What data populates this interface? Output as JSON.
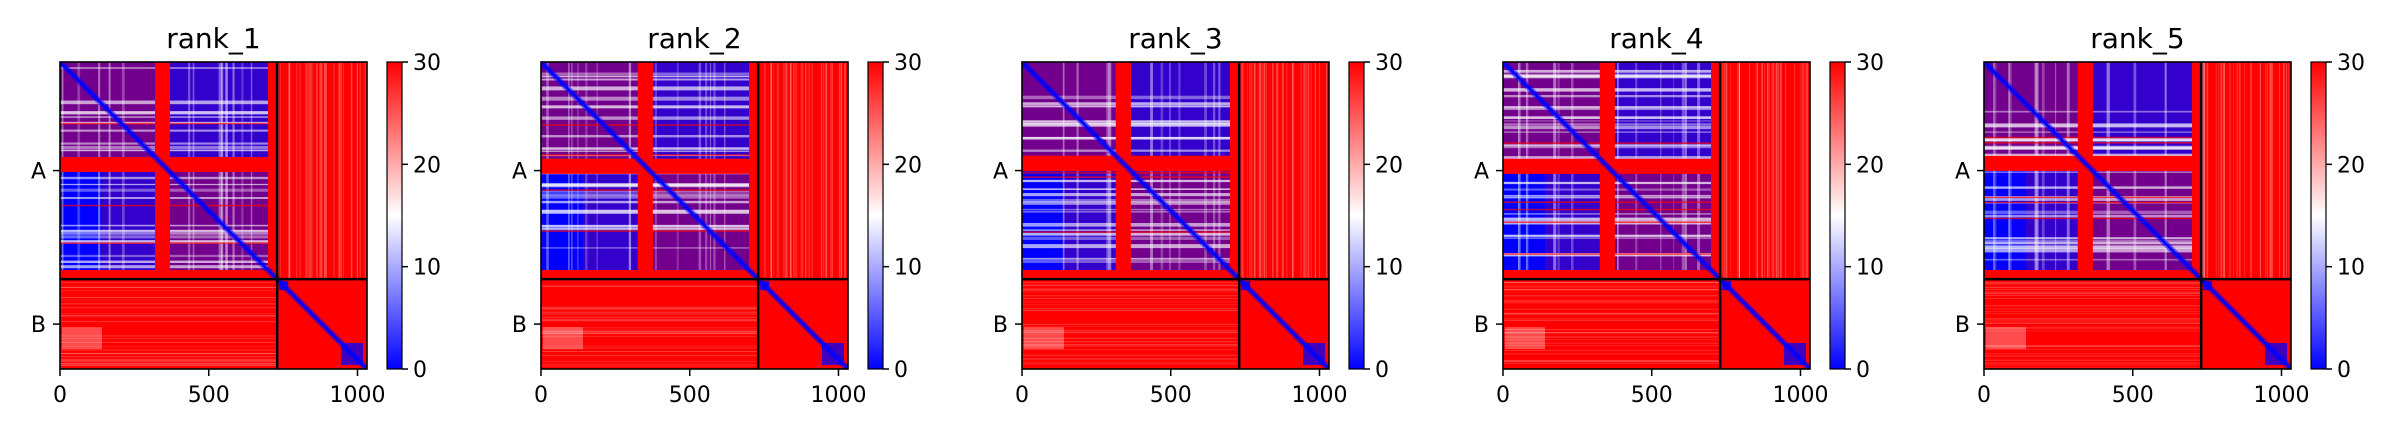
{
  "chart_data": [
    {
      "type": "heatmap",
      "title": "rank_1",
      "x_ticks": [
        0,
        500,
        1000
      ],
      "xlim": [
        0,
        1032
      ],
      "ylim": [
        1032,
        0
      ],
      "chain_labels": [
        "A",
        "B"
      ],
      "chain_boundaries": [
        0,
        730,
        1032
      ],
      "colorbar": {
        "range": [
          0,
          30
        ],
        "ticks": [
          0,
          10,
          20,
          30
        ],
        "colormap": "bwr",
        "colors": [
          "#0000ff",
          "#ffffff",
          "#ff0000"
        ]
      }
    },
    {
      "type": "heatmap",
      "title": "rank_2",
      "x_ticks": [
        0,
        500,
        1000
      ],
      "xlim": [
        0,
        1032
      ],
      "ylim": [
        1032,
        0
      ],
      "chain_labels": [
        "A",
        "B"
      ],
      "chain_boundaries": [
        0,
        730,
        1032
      ],
      "colorbar": {
        "range": [
          0,
          30
        ],
        "ticks": [
          0,
          10,
          20,
          30
        ],
        "colormap": "bwr",
        "colors": [
          "#0000ff",
          "#ffffff",
          "#ff0000"
        ]
      }
    },
    {
      "type": "heatmap",
      "title": "rank_3",
      "x_ticks": [
        0,
        500,
        1000
      ],
      "xlim": [
        0,
        1032
      ],
      "ylim": [
        1032,
        0
      ],
      "chain_labels": [
        "A",
        "B"
      ],
      "chain_boundaries": [
        0,
        730,
        1032
      ],
      "colorbar": {
        "range": [
          0,
          30
        ],
        "ticks": [
          0,
          10,
          20,
          30
        ],
        "colormap": "bwr",
        "colors": [
          "#0000ff",
          "#ffffff",
          "#ff0000"
        ]
      }
    },
    {
      "type": "heatmap",
      "title": "rank_4",
      "x_ticks": [
        0,
        500,
        1000
      ],
      "xlim": [
        0,
        1032
      ],
      "ylim": [
        1032,
        0
      ],
      "chain_labels": [
        "A",
        "B"
      ],
      "chain_boundaries": [
        0,
        730,
        1032
      ],
      "colorbar": {
        "range": [
          0,
          30
        ],
        "ticks": [
          0,
          10,
          20,
          30
        ],
        "colormap": "bwr",
        "colors": [
          "#0000ff",
          "#ffffff",
          "#ff0000"
        ]
      }
    },
    {
      "type": "heatmap",
      "title": "rank_5",
      "x_ticks": [
        0,
        500,
        1000
      ],
      "xlim": [
        0,
        1032
      ],
      "ylim": [
        1032,
        0
      ],
      "chain_labels": [
        "A",
        "B"
      ],
      "chain_boundaries": [
        0,
        730,
        1032
      ],
      "colorbar": {
        "range": [
          0,
          30
        ],
        "ticks": [
          0,
          10,
          20,
          30
        ],
        "colormap": "bwr",
        "colors": [
          "#0000ff",
          "#ffffff",
          "#ff0000"
        ]
      }
    }
  ]
}
